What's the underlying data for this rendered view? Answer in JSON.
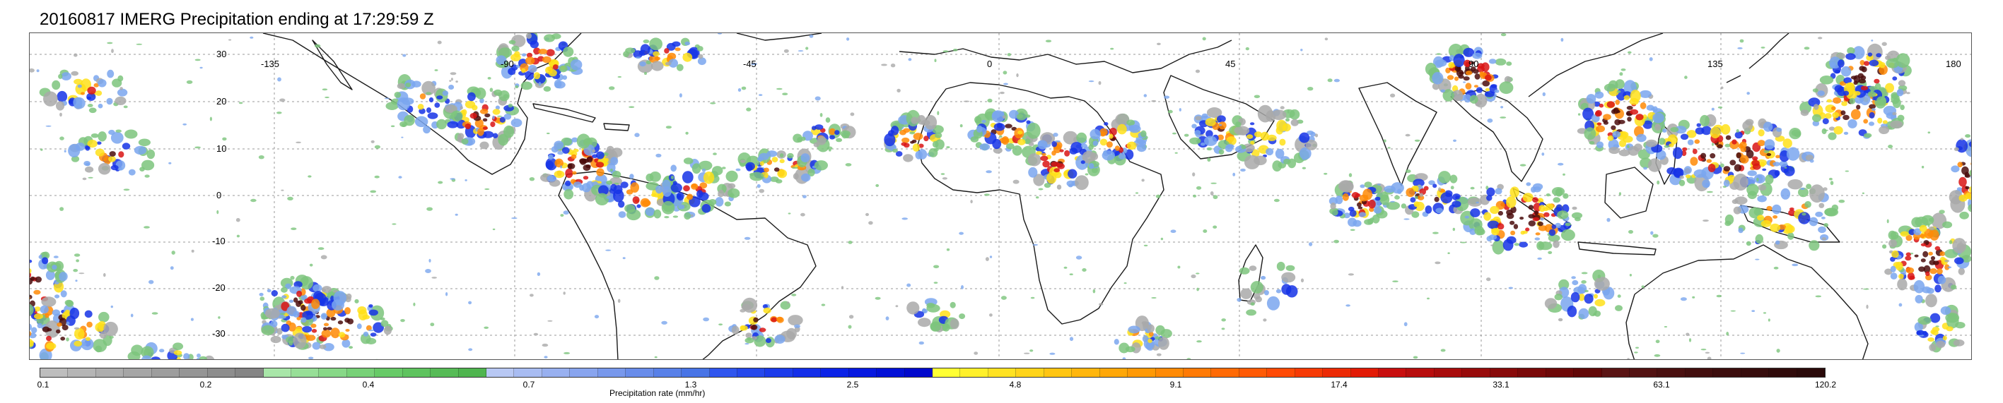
{
  "title": "20160817 IMERG Precipitation ending at 17:29:59 Z",
  "map": {
    "lat_labels": [
      "30",
      "20",
      "10",
      "0",
      "-10",
      "-20",
      "-30"
    ],
    "lon_labels": [
      "-135",
      "-90",
      "-45",
      "0",
      "45",
      "90",
      "135",
      "180"
    ]
  },
  "colorbar": {
    "label": "Precipitation rate (mm/hr)",
    "ticks": [
      "0.1",
      "0.2",
      "0.4",
      "0.7",
      "1.3",
      "2.5",
      "4.8",
      "9.1",
      "17.4",
      "33.1",
      "63.1",
      "120.2"
    ],
    "segment_colors": [
      "#bdbdbd",
      "#b5b5b5",
      "#adadad",
      "#a5a5a5",
      "#9d9d9d",
      "#959595",
      "#8d8d8d",
      "#858585",
      "#a8e6a8",
      "#97df97",
      "#87d887",
      "#77d177",
      "#67ca67",
      "#5ec35e",
      "#56bb56",
      "#4fb54f",
      "#b8c8f4",
      "#a8bcf2",
      "#98b0f0",
      "#88a4ee",
      "#7898ec",
      "#688cea",
      "#5880e8",
      "#4874e6",
      "#2f55ee",
      "#2548ec",
      "#1b3beb",
      "#132ee9",
      "#0b22e7",
      "#0618e0",
      "#0210d6",
      "#0008cc",
      "#ffff33",
      "#fff02a",
      "#ffe222",
      "#ffd41a",
      "#ffc512",
      "#ffb60d",
      "#ffa708",
      "#ff9905",
      "#ff8a05",
      "#ff7a05",
      "#ff6a05",
      "#ff5a05",
      "#ff4a05",
      "#f63a05",
      "#ec2a05",
      "#e21a05",
      "#c80e0e",
      "#b80d0d",
      "#a80c0c",
      "#980b0b",
      "#880a0a",
      "#7a0909",
      "#6e0808",
      "#620707",
      "#5a1414",
      "#521212",
      "#4a1010",
      "#420e0e",
      "#3c0d0d",
      "#360c0c",
      "#300b0b",
      "#2a0a0a"
    ]
  },
  "colors": {
    "coast": "#1a1a1a",
    "grid": "#9a9a9a",
    "rain_gray": "#a9a9a9",
    "rain_green": "#7cc47c",
    "rain_lightblue": "#7aa6ee",
    "rain_blue": "#1533e6",
    "rain_yellow": "#ffe119",
    "rain_orange": "#ff8a05",
    "rain_red": "#d91414",
    "rain_darkred": "#4a0c0c"
  }
}
